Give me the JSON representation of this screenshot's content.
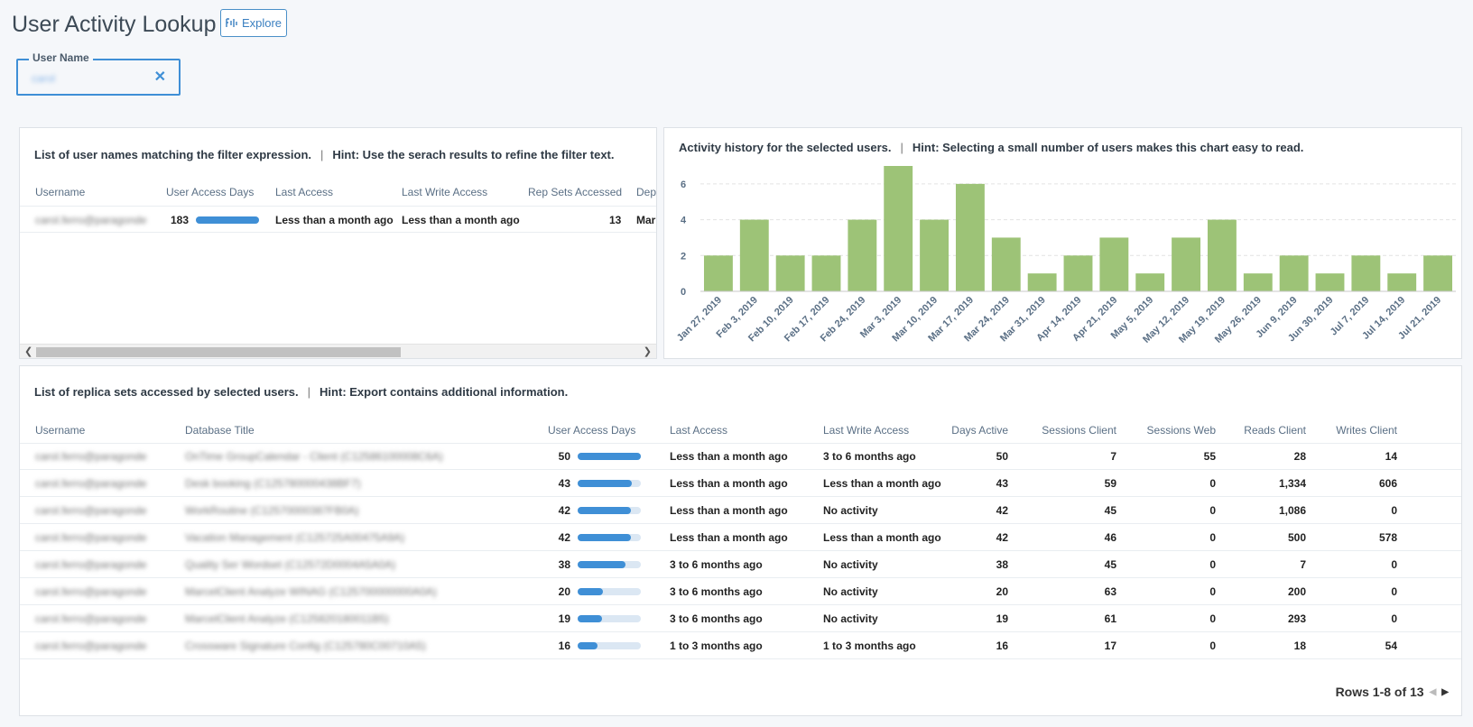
{
  "page": {
    "title": "User Activity Lookup",
    "explore_label": "Explore"
  },
  "filter": {
    "label": "User Name",
    "value": "carol",
    "clear_icon": "close-icon"
  },
  "users_panel": {
    "title": "List of user names matching the filter expression.",
    "hint": "Hint: Use the serach results to refine the filter text.",
    "columns": [
      "Username",
      "User Access Days",
      "Last Access",
      "Last Write Access",
      "Rep Sets Accessed",
      "Depa"
    ],
    "rows": [
      {
        "username": "carol.ferro@paragonde",
        "access_days": "183",
        "access_fraction": 1.0,
        "last_access": "Less than a month ago",
        "last_write": "Less than a month ago",
        "rep_sets": "13",
        "dept": "Mar"
      }
    ]
  },
  "chart_panel": {
    "title": "Activity history for the selected users.",
    "hint": "Hint: Selecting a small number of users makes this chart easy to read."
  },
  "chart_data": {
    "type": "bar",
    "categories": [
      "Jan 27, 2019",
      "Feb 3, 2019",
      "Feb 10, 2019",
      "Feb 17, 2019",
      "Feb 24, 2019",
      "Mar 3, 2019",
      "Mar 10, 2019",
      "Mar 17, 2019",
      "Mar 24, 2019",
      "Mar 31, 2019",
      "Apr 14, 2019",
      "Apr 21, 2019",
      "May 5, 2019",
      "May 12, 2019",
      "May 19, 2019",
      "May 26, 2019",
      "Jun 9, 2019",
      "Jun 30, 2019",
      "Jul 7, 2019",
      "Jul 14, 2019",
      "Jul 21, 2019"
    ],
    "values": [
      2,
      4,
      2,
      2,
      4,
      7,
      4,
      6,
      3,
      1,
      2,
      3,
      1,
      3,
      4,
      1,
      2,
      1,
      2,
      1,
      2
    ],
    "yticks": [
      "0",
      "2",
      "4",
      "6"
    ],
    "ylim": [
      0,
      7
    ],
    "bar_color": "#9dc377",
    "grid": true
  },
  "replica_panel": {
    "title": "List of replica sets accessed by selected users.",
    "hint": "Hint: Export contains additional information.",
    "columns": [
      "Username",
      "Database Title",
      "User Access Days",
      "Last Access",
      "Last Write Access",
      "Days Active",
      "Sessions Client",
      "Sessions Web",
      "Reads Client",
      "Writes Client"
    ],
    "rows": [
      {
        "username": "carol.ferro@paragonde",
        "db": "OnTime GroupCalendar - Client (C12586100008C6A)",
        "access_days": "50",
        "access_fraction": 1.0,
        "last_access": "Less than a month ago",
        "last_write": "3 to 6 months ago",
        "days_active": "50",
        "sessions_client": "7",
        "sessions_web": "55",
        "reads": "28",
        "writes": "14"
      },
      {
        "username": "carol.ferro@paragonde",
        "db": "Desk booking (C125780000438BF7)",
        "access_days": "43",
        "access_fraction": 0.86,
        "last_access": "Less than a month ago",
        "last_write": "Less than a month ago",
        "days_active": "43",
        "sessions_client": "59",
        "sessions_web": "0",
        "reads": "1,334",
        "writes": "606"
      },
      {
        "username": "carol.ferro@paragonde",
        "db": "WorkRoutine (C12570000387FB0A)",
        "access_days": "42",
        "access_fraction": 0.84,
        "last_access": "Less than a month ago",
        "last_write": "No activity",
        "days_active": "42",
        "sessions_client": "45",
        "sessions_web": "0",
        "reads": "1,086",
        "writes": "0"
      },
      {
        "username": "carol.ferro@paragonde",
        "db": "Vacation Management (C125725A00475A9A)",
        "access_days": "42",
        "access_fraction": 0.84,
        "last_access": "Less than a month ago",
        "last_write": "Less than a month ago",
        "days_active": "42",
        "sessions_client": "46",
        "sessions_web": "0",
        "reads": "500",
        "writes": "578"
      },
      {
        "username": "carol.ferro@paragonde",
        "db": "Quality Ser Wordset (C12572D0004A5A0A)",
        "access_days": "38",
        "access_fraction": 0.76,
        "last_access": "3 to 6 months ago",
        "last_write": "No activity",
        "days_active": "38",
        "sessions_client": "45",
        "sessions_web": "0",
        "reads": "7",
        "writes": "0"
      },
      {
        "username": "carol.ferro@paragonde",
        "db": "MarcelClient Analyze WINAG (C125700000000A0A)",
        "access_days": "20",
        "access_fraction": 0.4,
        "last_access": "3 to 6 months ago",
        "last_write": "No activity",
        "days_active": "20",
        "sessions_client": "63",
        "sessions_web": "0",
        "reads": "200",
        "writes": "0"
      },
      {
        "username": "carol.ferro@paragonde",
        "db": "MarcelClient Analyze (C125820180011B5)",
        "access_days": "19",
        "access_fraction": 0.38,
        "last_access": "3 to 6 months ago",
        "last_write": "No activity",
        "days_active": "19",
        "sessions_client": "61",
        "sessions_web": "0",
        "reads": "293",
        "writes": "0"
      },
      {
        "username": "carol.ferro@paragonde",
        "db": "Crossware Signature Config (C125780C00710A5)",
        "access_days": "16",
        "access_fraction": 0.32,
        "last_access": "1 to 3 months ago",
        "last_write": "1 to 3 months ago",
        "days_active": "16",
        "sessions_client": "17",
        "sessions_web": "0",
        "reads": "18",
        "writes": "54"
      }
    ],
    "pager": {
      "label": "Rows 1-8 of 13"
    }
  }
}
